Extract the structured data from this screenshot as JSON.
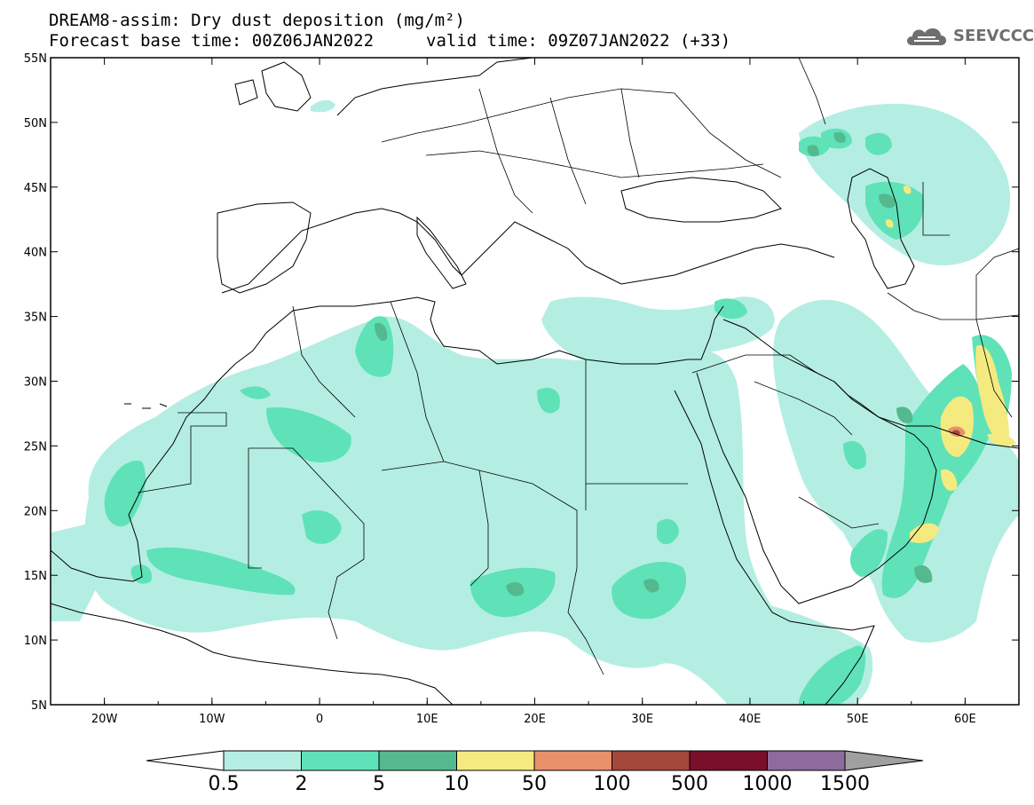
{
  "header": {
    "title": "DREAM8-assim: Dry dust deposition (mg/m²)",
    "base_time": "Forecast base time: 00Z06JAN2022",
    "valid_time": "valid time: 09Z07JAN2022 (+33)"
  },
  "logo": {
    "icon": "cloud-logo-icon",
    "text": "SEEVCCC"
  },
  "map": {
    "lat_labels": [
      "55N",
      "50N",
      "45N",
      "40N",
      "35N",
      "30N",
      "25N",
      "20N",
      "15N",
      "10N",
      "5N"
    ],
    "lon_labels": [
      "20W",
      "10W",
      "0",
      "10E",
      "20E",
      "30E",
      "40E",
      "50E",
      "60E"
    ],
    "lon_range": [
      -25,
      65
    ],
    "lat_range": [
      5,
      55
    ]
  },
  "legend": {
    "levels": [
      "0.5",
      "2",
      "5",
      "10",
      "50",
      "100",
      "500",
      "1000",
      "1500"
    ],
    "colors": [
      "#b4eee3",
      "#5fe2b8",
      "#54b98e",
      "#f4ea80",
      "#e8916a",
      "#a5483c",
      "#7a0f2c",
      "#8d6b9d",
      "#a0a0a0"
    ]
  }
}
